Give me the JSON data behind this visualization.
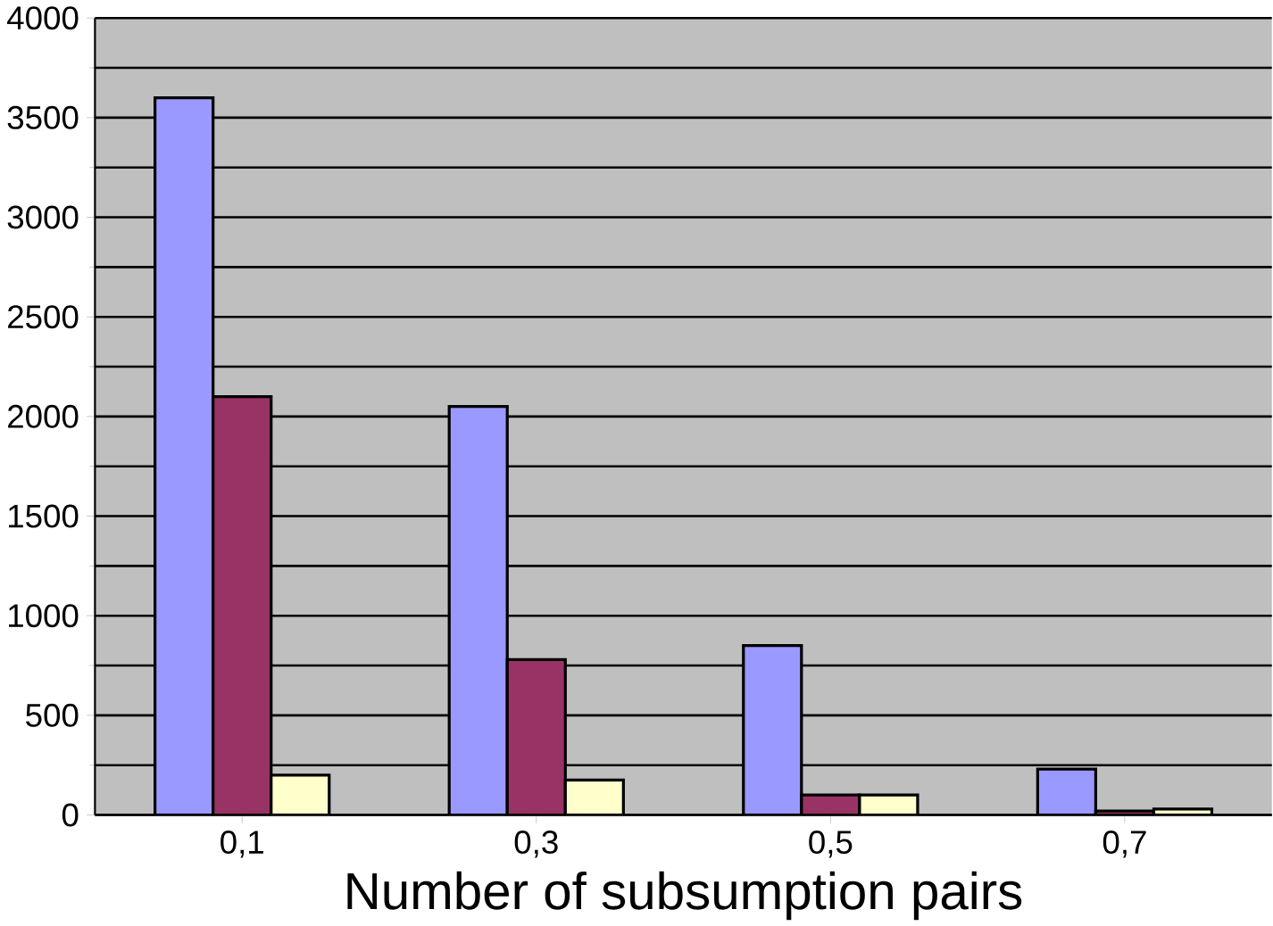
{
  "chart_data": {
    "type": "bar",
    "xlabel": "Number of subsumption pairs",
    "categories": [
      "0,1",
      "0,3",
      "0,5",
      "0,7"
    ],
    "series": [
      {
        "color": "#9999ff",
        "values": [
          3600,
          2050,
          850,
          230
        ]
      },
      {
        "color": "#993366",
        "values": [
          2100,
          780,
          100,
          20
        ]
      },
      {
        "color": "#ffffcc",
        "values": [
          200,
          175,
          100,
          30
        ]
      }
    ],
    "ylim": [
      0,
      4000
    ],
    "yticks": [
      0,
      500,
      1000,
      1500,
      2000,
      2500,
      3000,
      3500,
      4000
    ],
    "grid": "y"
  }
}
